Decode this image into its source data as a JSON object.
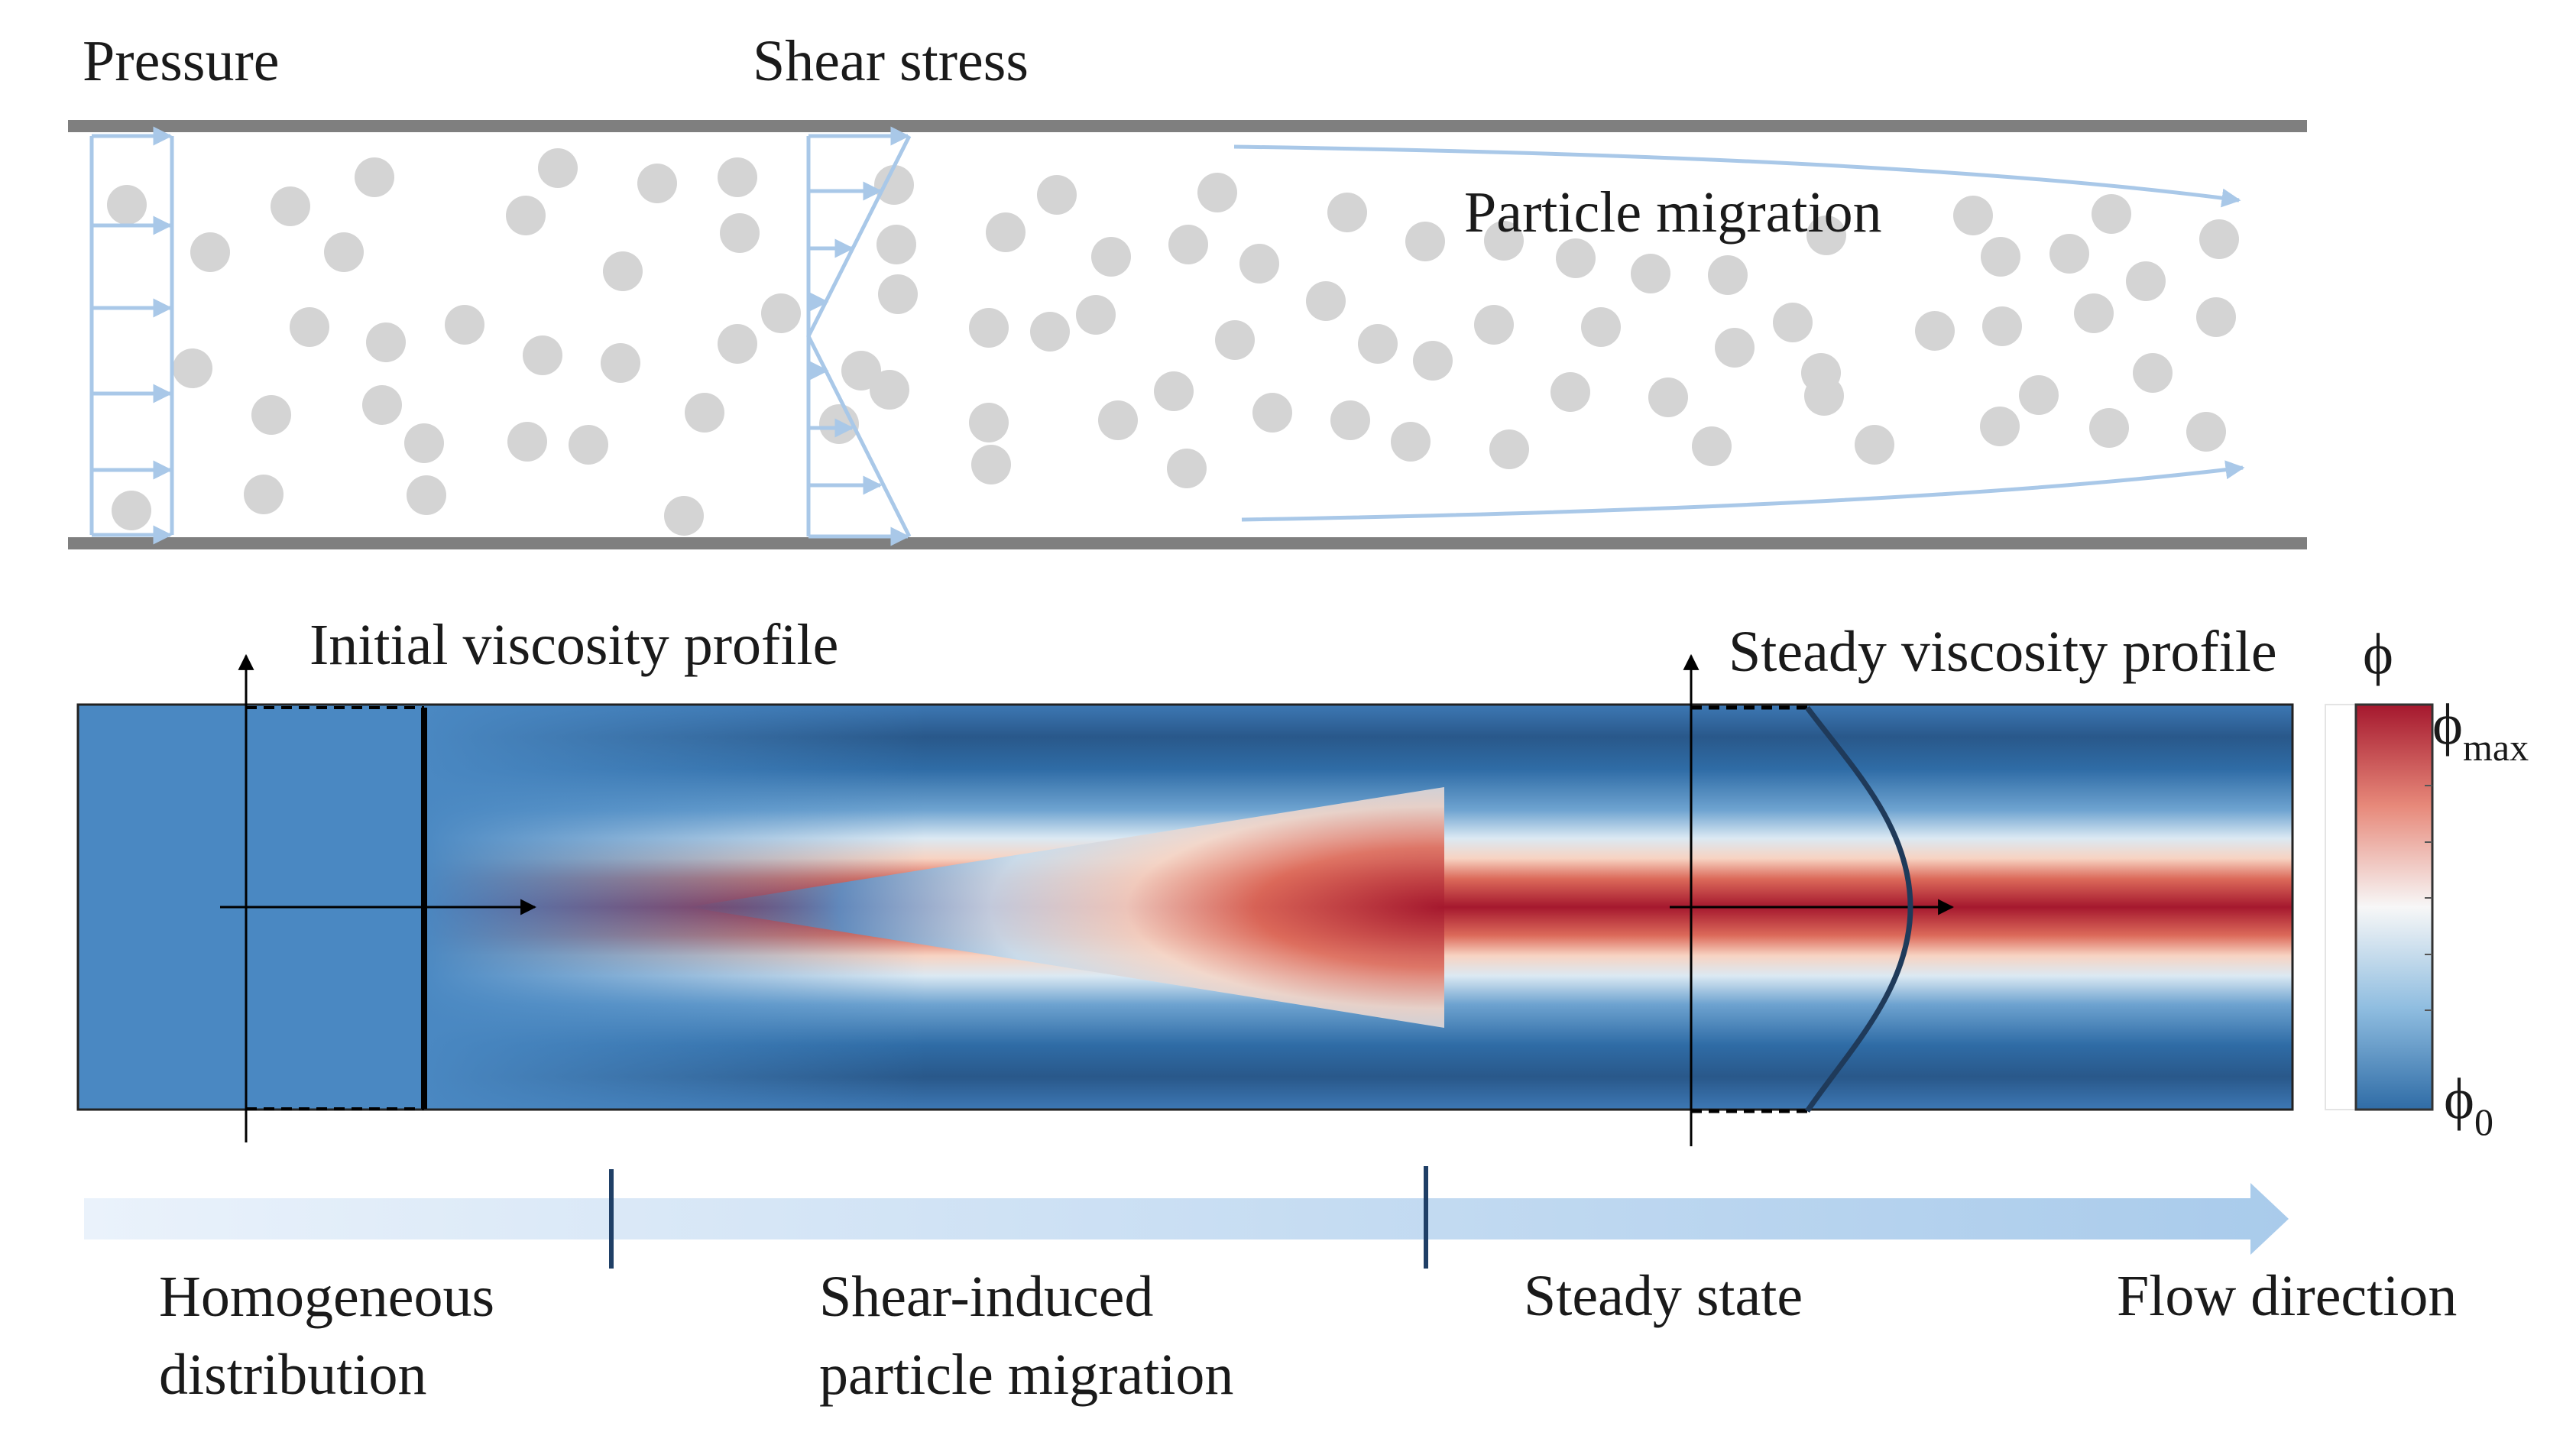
{
  "labels": {
    "pressure": "Pressure",
    "shear_stress": "Shear stress",
    "particle_migration": "Particle migration",
    "initial_profile": "Initial viscosity profile",
    "steady_profile": "Steady viscosity profile",
    "phi": "ϕ",
    "phi_max_base": "ϕ",
    "phi_max_sub": "max",
    "phi_0_base": "ϕ",
    "phi_0_sub": "0",
    "stage1_line1": "Homogeneous",
    "stage1_line2": "distribution",
    "stage2_line1": "Shear-induced",
    "stage2_line2": "particle migration",
    "stage3": "Steady state",
    "flow_direction": "Flow direction"
  },
  "colors": {
    "wall": "#7f7f7f",
    "particle": "#d4d4d4",
    "arrow_light": "#a9c8e8",
    "colormap_low": "#2f6ca6",
    "colormap_mid": "#f7f7f7",
    "colormap_high": "#b2182b",
    "progress_arrow": "#b5d3ee",
    "stage_divider": "#1f3f66",
    "profile_curve": "#1f3a5a"
  }
}
